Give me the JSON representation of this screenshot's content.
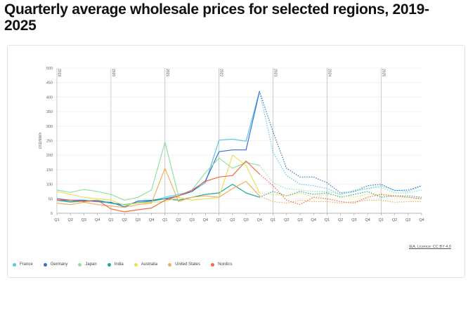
{
  "title": "Quarterly average wholesale prices for selected regions, 2019-2025",
  "source": "IEA. Licence: CC BY 4.0",
  "chart_data": {
    "type": "line",
    "ylabel": "USD/MWh",
    "ylim": [
      0,
      500
    ],
    "yticks": [
      0,
      50,
      100,
      150,
      200,
      250,
      300,
      350,
      400,
      450,
      500
    ],
    "categories": [
      "Q1",
      "Q2",
      "Q3",
      "Q4",
      "Q1",
      "Q2",
      "Q3",
      "Q4",
      "Q1",
      "Q2",
      "Q3",
      "Q4",
      "Q1",
      "Q2",
      "Q3",
      "Q4",
      "Q1",
      "Q2",
      "Q3",
      "Q4",
      "Q1",
      "Q2",
      "Q3",
      "Q4",
      "Q1",
      "Q2",
      "Q3",
      "Q4"
    ],
    "years": [
      {
        "label": "2019",
        "index": 0
      },
      {
        "label": "2020",
        "index": 4
      },
      {
        "label": "2021",
        "index": 8
      },
      {
        "label": "2022",
        "index": 12
      },
      {
        "label": "2023",
        "index": 16
      },
      {
        "label": "2024",
        "index": 20
      },
      {
        "label": "2025",
        "index": 24
      }
    ],
    "forecast_start_index": 15,
    "grid": true,
    "legend_position": "bottom-left",
    "series": [
      {
        "name": "France",
        "color": "#5ac8ea",
        "values": [
          45,
          38,
          42,
          40,
          35,
          28,
          38,
          42,
          55,
          65,
          75,
          105,
          252,
          255,
          248,
          420,
          210,
          130,
          100,
          95,
          85,
          65,
          75,
          85,
          95,
          80,
          75,
          95
        ]
      },
      {
        "name": "Germany",
        "color": "#3a6fcf",
        "values": [
          50,
          45,
          45,
          40,
          38,
          22,
          42,
          45,
          50,
          60,
          75,
          112,
          212,
          218,
          218,
          420,
          280,
          155,
          125,
          125,
          105,
          70,
          75,
          95,
          100,
          78,
          80,
          95
        ]
      },
      {
        "name": "Japan",
        "color": "#8fe3a0",
        "values": [
          80,
          72,
          82,
          75,
          65,
          45,
          55,
          80,
          245,
          60,
          80,
          140,
          190,
          155,
          175,
          165,
          105,
          85,
          80,
          75,
          75,
          65,
          80,
          85,
          90,
          70,
          70,
          80
        ]
      },
      {
        "name": "India",
        "color": "#1aa89c",
        "values": [
          45,
          40,
          42,
          45,
          35,
          30,
          35,
          42,
          50,
          45,
          55,
          65,
          70,
          100,
          70,
          55,
          75,
          60,
          75,
          65,
          70,
          55,
          65,
          75,
          55,
          60,
          60,
          55
        ]
      },
      {
        "name": "Australia",
        "color": "#ecdf5a",
        "values": [
          75,
          65,
          55,
          50,
          45,
          28,
          35,
          38,
          40,
          55,
          45,
          50,
          55,
          200,
          165,
          70,
          65,
          60,
          70,
          55,
          65,
          60,
          55,
          65,
          65,
          55,
          55,
          50
        ]
      },
      {
        "name": "United States",
        "color": "#f0b05a",
        "values": [
          35,
          30,
          38,
          30,
          25,
          20,
          30,
          35,
          155,
          40,
          55,
          60,
          55,
          85,
          110,
          60,
          40,
          35,
          45,
          40,
          40,
          35,
          40,
          45,
          45,
          38,
          40,
          40
        ]
      },
      {
        "name": "Nordics",
        "color": "#f06a3f",
        "values": [
          45,
          45,
          40,
          45,
          15,
          5,
          12,
          18,
          45,
          60,
          80,
          110,
          125,
          130,
          180,
          135,
          95,
          45,
          30,
          55,
          50,
          40,
          35,
          55,
          65,
          60,
          55,
          50
        ]
      }
    ]
  }
}
